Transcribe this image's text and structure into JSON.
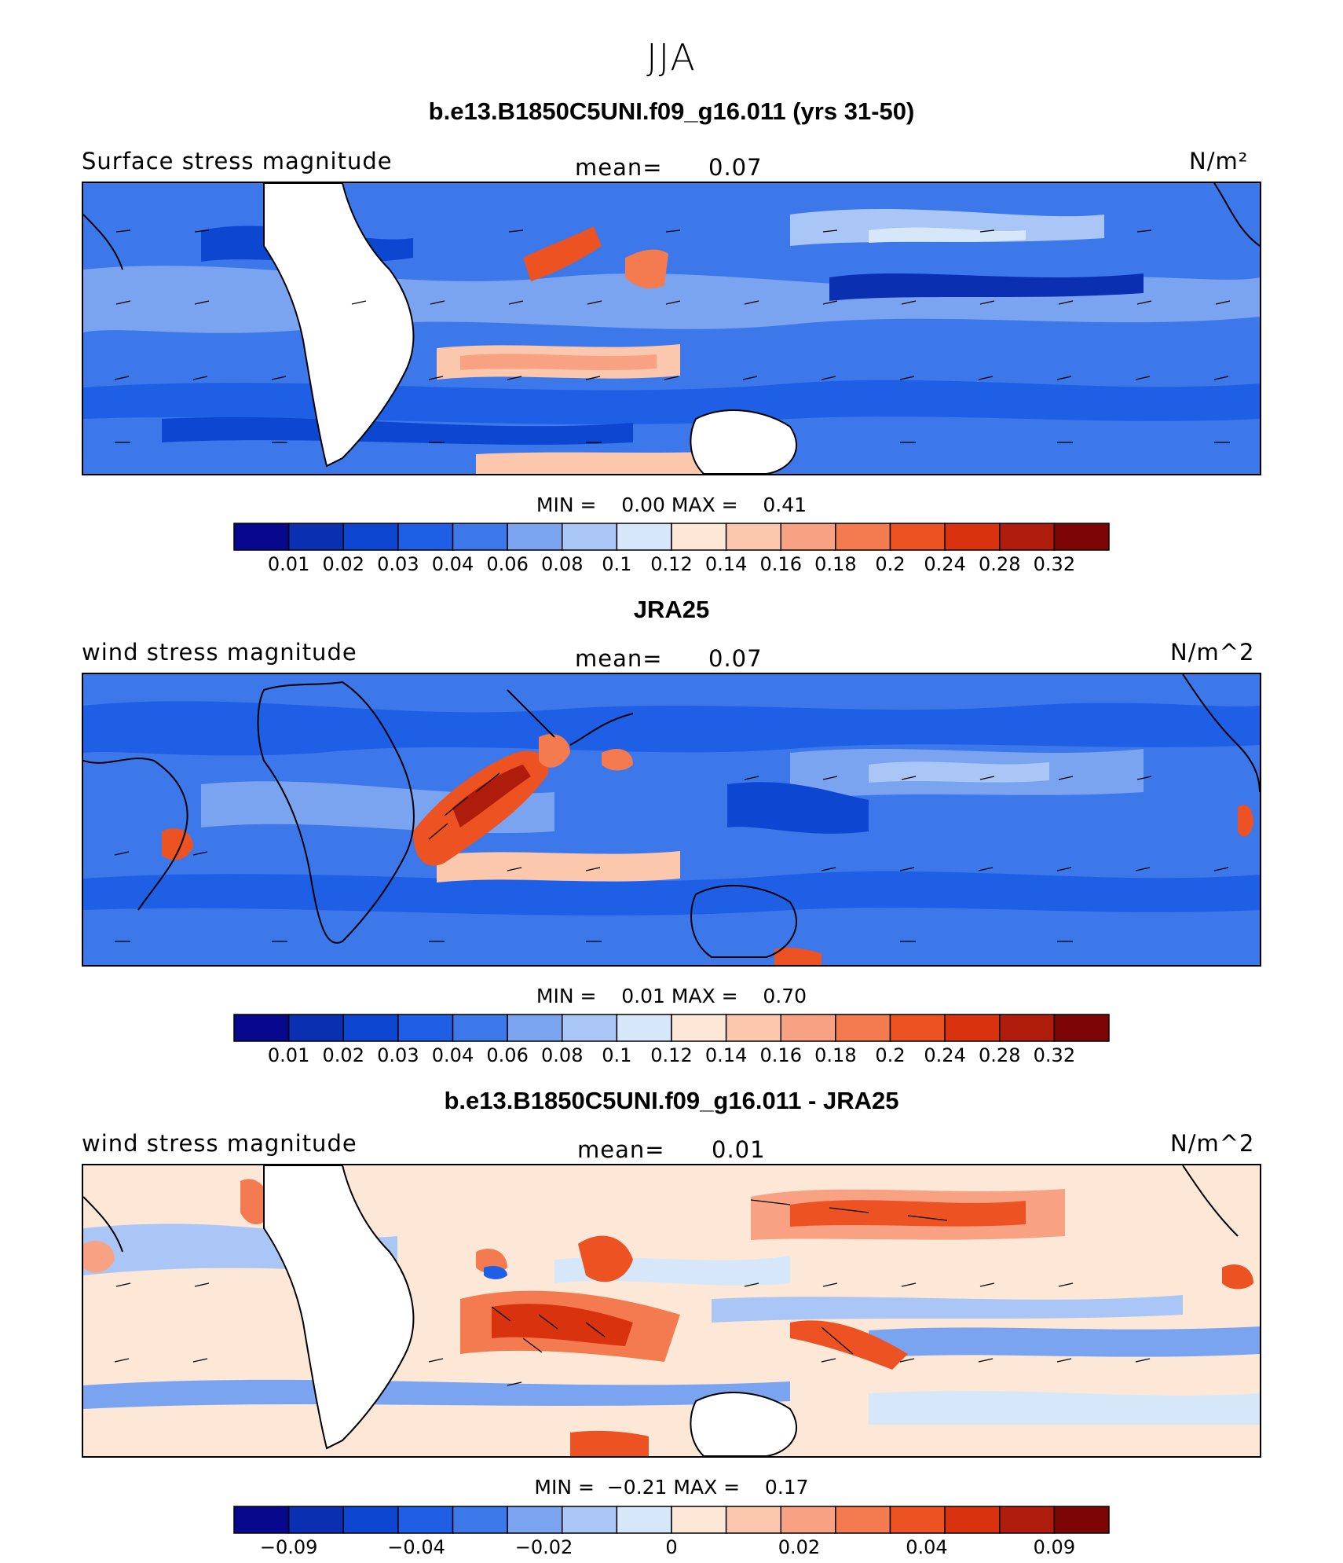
{
  "title": "JJA",
  "colors": [
    "#08088f",
    "#0a2fb0",
    "#0d46d0",
    "#1f5fe6",
    "#3c78ea",
    "#7aa3f0",
    "#aac6f6",
    "#d6e7fa",
    "#fde8d8",
    "#fcc8ad",
    "#f8a283",
    "#f47a50",
    "#ec5222",
    "#d8320e",
    "#b01c0c",
    "#7e0506"
  ],
  "panels": [
    {
      "title": "b.e13.B1850C5UNI.f09_g16.011 (yrs 31-50)",
      "left_label": "Surface stress magnitude",
      "mean_label": "mean=",
      "mean_value": "0.07",
      "units": "N/m²",
      "min_label": "MIN =",
      "min_value": "0.00",
      "max_label": "MAX =",
      "max_value": "0.41",
      "ticks": [
        "0.01",
        "0.02",
        "0.03",
        "0.04",
        "0.06",
        "0.08",
        "0.1",
        "0.12",
        "0.14",
        "0.16",
        "0.18",
        "0.2",
        "0.24",
        "0.28",
        "0.32"
      ]
    },
    {
      "title": "JRA25",
      "left_label": "wind stress magnitude",
      "mean_label": "mean=",
      "mean_value": "0.07",
      "units": "N/m^2",
      "min_label": "MIN =",
      "min_value": "0.01",
      "max_label": "MAX =",
      "max_value": "0.70",
      "ticks": [
        "0.01",
        "0.02",
        "0.03",
        "0.04",
        "0.06",
        "0.08",
        "0.1",
        "0.12",
        "0.14",
        "0.16",
        "0.18",
        "0.2",
        "0.24",
        "0.28",
        "0.32"
      ]
    },
    {
      "title": "b.e13.B1850C5UNI.f09_g16.011 - JRA25",
      "left_label": "wind stress magnitude",
      "mean_label": "mean=",
      "mean_value": "0.01",
      "units": "N/m^2",
      "min_label": "MIN =",
      "min_value": "−0.21",
      "max_label": "MAX =",
      "max_value": "0.17",
      "ticks": [
        "−0.09",
        "−0.04",
        "−0.02",
        "0",
        "0.02",
        "0.04",
        "0.09"
      ]
    }
  ],
  "chart_data": [
    {
      "type": "heatmap",
      "title": "b.e13.B1850C5UNI.f09_g16.011 (yrs 31-50)",
      "variable": "Surface stress magnitude",
      "units": "N/m²",
      "season": "JJA",
      "mean": 0.07,
      "min": 0.0,
      "max": 0.41,
      "contour_levels": [
        0.01,
        0.02,
        0.03,
        0.04,
        0.06,
        0.08,
        0.1,
        0.12,
        0.14,
        0.16,
        0.18,
        0.2,
        0.24,
        0.28,
        0.32
      ],
      "overlay": "wind stress vectors"
    },
    {
      "type": "heatmap",
      "title": "JRA25",
      "variable": "wind stress magnitude",
      "units": "N/m^2",
      "season": "JJA",
      "mean": 0.07,
      "min": 0.01,
      "max": 0.7,
      "contour_levels": [
        0.01,
        0.02,
        0.03,
        0.04,
        0.06,
        0.08,
        0.1,
        0.12,
        0.14,
        0.16,
        0.18,
        0.2,
        0.24,
        0.28,
        0.32
      ],
      "overlay": "wind stress vectors"
    },
    {
      "type": "heatmap",
      "title": "b.e13.B1850C5UNI.f09_g16.011 - JRA25",
      "variable": "wind stress magnitude",
      "units": "N/m^2",
      "season": "JJA",
      "mean": 0.01,
      "min": -0.21,
      "max": 0.17,
      "contour_levels": [
        -0.09,
        -0.04,
        -0.02,
        0,
        0.02,
        0.04,
        0.09
      ],
      "overlay": "wind stress difference vectors"
    }
  ]
}
